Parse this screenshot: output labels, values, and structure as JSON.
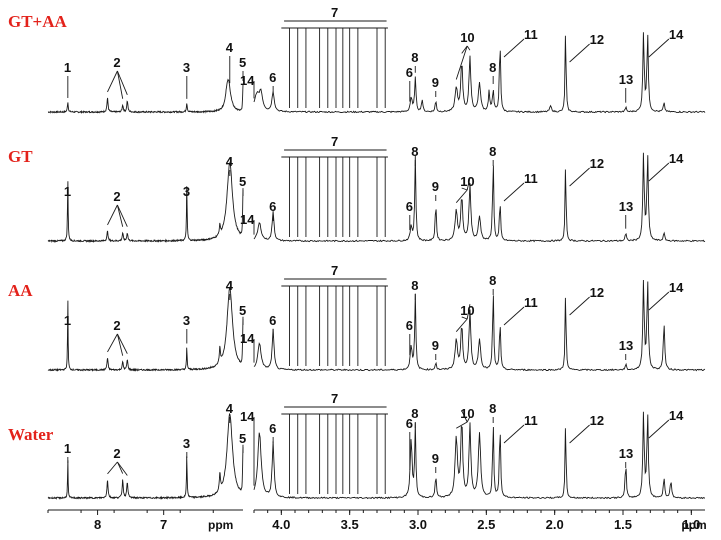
{
  "chart_data": {
    "type": "line",
    "title": "",
    "xlabel": "ppm",
    "axes": [
      {
        "id": "left",
        "xlim": [
          8.75,
          5.8
        ],
        "ticks": [
          8,
          7
        ],
        "unit": "ppm",
        "tick_labels": [
          "8",
          "7"
        ]
      },
      {
        "id": "right",
        "xlim": [
          4.2,
          0.9
        ],
        "ticks": [
          4.0,
          3.5,
          3.0,
          2.5,
          2.0,
          1.5,
          1.0
        ],
        "unit": "ppm",
        "tick_labels": [
          "4.0",
          "3.5",
          "3.0",
          "2.5",
          "2.0",
          "1.5",
          "1.0"
        ]
      }
    ],
    "panels": [
      {
        "name": "GT+AA",
        "baseline": 112,
        "peaks": [
          {
            "ppm": 8.45,
            "h": 10,
            "w": 0.008
          },
          {
            "ppm": 7.85,
            "h": 14,
            "w": 0.01
          },
          {
            "ppm": 7.62,
            "h": 7,
            "w": 0.01
          },
          {
            "ppm": 7.55,
            "h": 11,
            "w": 0.01
          },
          {
            "ppm": 6.65,
            "h": 9,
            "w": 0.008
          },
          {
            "ppm": 6.05,
            "h": 6,
            "w": 0.02
          },
          {
            "ppm": 6.02,
            "h": 30,
            "w": 0.04
          },
          {
            "ppm": 5.8,
            "h": 26,
            "w": 0.006
          },
          {
            "ppm": 4.18,
            "h": 16,
            "w": 0.02
          },
          {
            "ppm": 4.15,
            "h": 18,
            "w": 0.015
          },
          {
            "ppm": 4.06,
            "h": 20,
            "w": 0.01
          },
          {
            "ppm": 3.05,
            "h": 14,
            "w": 0.008
          },
          {
            "ppm": 3.02,
            "h": 34,
            "w": 0.006
          },
          {
            "ppm": 2.97,
            "h": 12,
            "w": 0.006
          },
          {
            "ppm": 2.87,
            "h": 12,
            "w": 0.005
          },
          {
            "ppm": 2.72,
            "h": 24,
            "w": 0.01
          },
          {
            "ppm": 2.68,
            "h": 50,
            "w": 0.008
          },
          {
            "ppm": 2.62,
            "h": 54,
            "w": 0.008
          },
          {
            "ppm": 2.55,
            "h": 28,
            "w": 0.01
          },
          {
            "ppm": 2.48,
            "h": 20,
            "w": 0.006
          },
          {
            "ppm": 2.45,
            "h": 22,
            "w": 0.006
          },
          {
            "ppm": 2.4,
            "h": 74,
            "w": 0.005
          },
          {
            "ppm": 2.03,
            "h": 6,
            "w": 0.008
          },
          {
            "ppm": 1.92,
            "h": 90,
            "w": 0.004
          },
          {
            "ppm": 1.48,
            "h": 5,
            "w": 0.005
          },
          {
            "ppm": 1.35,
            "h": 77,
            "w": 0.006
          },
          {
            "ppm": 1.32,
            "h": 77,
            "w": 0.006
          },
          {
            "ppm": 1.2,
            "h": 9,
            "w": 0.006
          }
        ]
      },
      {
        "name": "GT",
        "baseline": 241,
        "peaks": [
          {
            "ppm": 8.45,
            "h": 60,
            "w": 0.006
          },
          {
            "ppm": 7.85,
            "h": 10,
            "w": 0.01
          },
          {
            "ppm": 7.62,
            "h": 8,
            "w": 0.01
          },
          {
            "ppm": 7.55,
            "h": 8,
            "w": 0.01
          },
          {
            "ppm": 6.65,
            "h": 55,
            "w": 0.006
          },
          {
            "ppm": 6.15,
            "h": 10,
            "w": 0.01
          },
          {
            "ppm": 6.0,
            "h": 78,
            "w": 0.05
          },
          {
            "ppm": 5.8,
            "h": 48,
            "w": 0.006
          },
          {
            "ppm": 4.16,
            "h": 18,
            "w": 0.015
          },
          {
            "ppm": 4.06,
            "h": 30,
            "w": 0.008
          },
          {
            "ppm": 3.05,
            "h": 14,
            "w": 0.008
          },
          {
            "ppm": 3.02,
            "h": 85,
            "w": 0.005
          },
          {
            "ppm": 2.87,
            "h": 40,
            "w": 0.005
          },
          {
            "ppm": 2.72,
            "h": 30,
            "w": 0.01
          },
          {
            "ppm": 2.68,
            "h": 44,
            "w": 0.008
          },
          {
            "ppm": 2.62,
            "h": 56,
            "w": 0.008
          },
          {
            "ppm": 2.55,
            "h": 24,
            "w": 0.01
          },
          {
            "ppm": 2.45,
            "h": 82,
            "w": 0.005
          },
          {
            "ppm": 2.4,
            "h": 40,
            "w": 0.005
          },
          {
            "ppm": 1.92,
            "h": 84,
            "w": 0.004
          },
          {
            "ppm": 1.48,
            "h": 8,
            "w": 0.005
          },
          {
            "ppm": 1.35,
            "h": 86,
            "w": 0.006
          },
          {
            "ppm": 1.32,
            "h": 86,
            "w": 0.006
          },
          {
            "ppm": 1.2,
            "h": 8,
            "w": 0.006
          }
        ]
      },
      {
        "name": "AA",
        "baseline": 370,
        "peaks": [
          {
            "ppm": 8.45,
            "h": 70,
            "w": 0.005
          },
          {
            "ppm": 7.85,
            "h": 12,
            "w": 0.01
          },
          {
            "ppm": 7.62,
            "h": 8,
            "w": 0.01
          },
          {
            "ppm": 7.55,
            "h": 10,
            "w": 0.01
          },
          {
            "ppm": 6.65,
            "h": 22,
            "w": 0.006
          },
          {
            "ppm": 6.15,
            "h": 16,
            "w": 0.01
          },
          {
            "ppm": 6.0,
            "h": 82,
            "w": 0.05
          },
          {
            "ppm": 5.8,
            "h": 48,
            "w": 0.006
          },
          {
            "ppm": 4.16,
            "h": 26,
            "w": 0.015
          },
          {
            "ppm": 4.06,
            "h": 40,
            "w": 0.008
          },
          {
            "ppm": 3.05,
            "h": 24,
            "w": 0.008
          },
          {
            "ppm": 3.02,
            "h": 75,
            "w": 0.005
          },
          {
            "ppm": 2.87,
            "h": 8,
            "w": 0.005
          },
          {
            "ppm": 2.72,
            "h": 30,
            "w": 0.01
          },
          {
            "ppm": 2.68,
            "h": 44,
            "w": 0.008
          },
          {
            "ppm": 2.62,
            "h": 58,
            "w": 0.008
          },
          {
            "ppm": 2.55,
            "h": 30,
            "w": 0.01
          },
          {
            "ppm": 2.45,
            "h": 80,
            "w": 0.005
          },
          {
            "ppm": 2.4,
            "h": 50,
            "w": 0.005
          },
          {
            "ppm": 1.92,
            "h": 86,
            "w": 0.004
          },
          {
            "ppm": 1.48,
            "h": 6,
            "w": 0.005
          },
          {
            "ppm": 1.35,
            "h": 88,
            "w": 0.006
          },
          {
            "ppm": 1.32,
            "h": 88,
            "w": 0.006
          },
          {
            "ppm": 1.2,
            "h": 48,
            "w": 0.006
          }
        ]
      },
      {
        "name": "Water",
        "baseline": 498,
        "peaks": [
          {
            "ppm": 8.45,
            "h": 38,
            "w": 0.005
          },
          {
            "ppm": 7.85,
            "h": 18,
            "w": 0.01
          },
          {
            "ppm": 7.62,
            "h": 18,
            "w": 0.01
          },
          {
            "ppm": 7.55,
            "h": 16,
            "w": 0.01
          },
          {
            "ppm": 6.65,
            "h": 42,
            "w": 0.006
          },
          {
            "ppm": 6.15,
            "h": 18,
            "w": 0.01
          },
          {
            "ppm": 6.0,
            "h": 84,
            "w": 0.05
          },
          {
            "ppm": 5.8,
            "h": 48,
            "w": 0.006
          },
          {
            "ppm": 4.16,
            "h": 66,
            "w": 0.015
          },
          {
            "ppm": 4.06,
            "h": 56,
            "w": 0.008
          },
          {
            "ppm": 3.05,
            "h": 58,
            "w": 0.008
          },
          {
            "ppm": 3.02,
            "h": 72,
            "w": 0.005
          },
          {
            "ppm": 2.87,
            "h": 24,
            "w": 0.005
          },
          {
            "ppm": 2.72,
            "h": 60,
            "w": 0.01
          },
          {
            "ppm": 2.68,
            "h": 76,
            "w": 0.008
          },
          {
            "ppm": 2.62,
            "h": 72,
            "w": 0.008
          },
          {
            "ppm": 2.55,
            "h": 64,
            "w": 0.01
          },
          {
            "ppm": 2.45,
            "h": 76,
            "w": 0.005
          },
          {
            "ppm": 2.4,
            "h": 76,
            "w": 0.005
          },
          {
            "ppm": 1.92,
            "h": 82,
            "w": 0.004
          },
          {
            "ppm": 1.48,
            "h": 36,
            "w": 0.005
          },
          {
            "ppm": 1.35,
            "h": 84,
            "w": 0.006
          },
          {
            "ppm": 1.32,
            "h": 84,
            "w": 0.006
          },
          {
            "ppm": 1.2,
            "h": 20,
            "w": 0.006
          },
          {
            "ppm": 1.15,
            "h": 18,
            "w": 0.006
          }
        ]
      }
    ],
    "annotations": [
      {
        "label": "1",
        "ppm": 8.45
      },
      {
        "label": "2",
        "ppm": 7.7
      },
      {
        "label": "3",
        "ppm": 6.65
      },
      {
        "label": "4",
        "ppm": 6.0
      },
      {
        "label": "5",
        "ppm": 5.8
      },
      {
        "label": "6",
        "ppm": 4.06
      },
      {
        "label": "7",
        "ppm": 3.6
      },
      {
        "label": "8",
        "ppm": 3.02
      },
      {
        "label": "9",
        "ppm": 2.87
      },
      {
        "label": "10",
        "ppm": 2.64
      },
      {
        "label": "11",
        "ppm": 2.4
      },
      {
        "label": "12",
        "ppm": 1.92
      },
      {
        "label": "13",
        "ppm": 1.48
      },
      {
        "label": "14",
        "ppm": 1.34
      }
    ],
    "grid": false,
    "legend": "none"
  }
}
